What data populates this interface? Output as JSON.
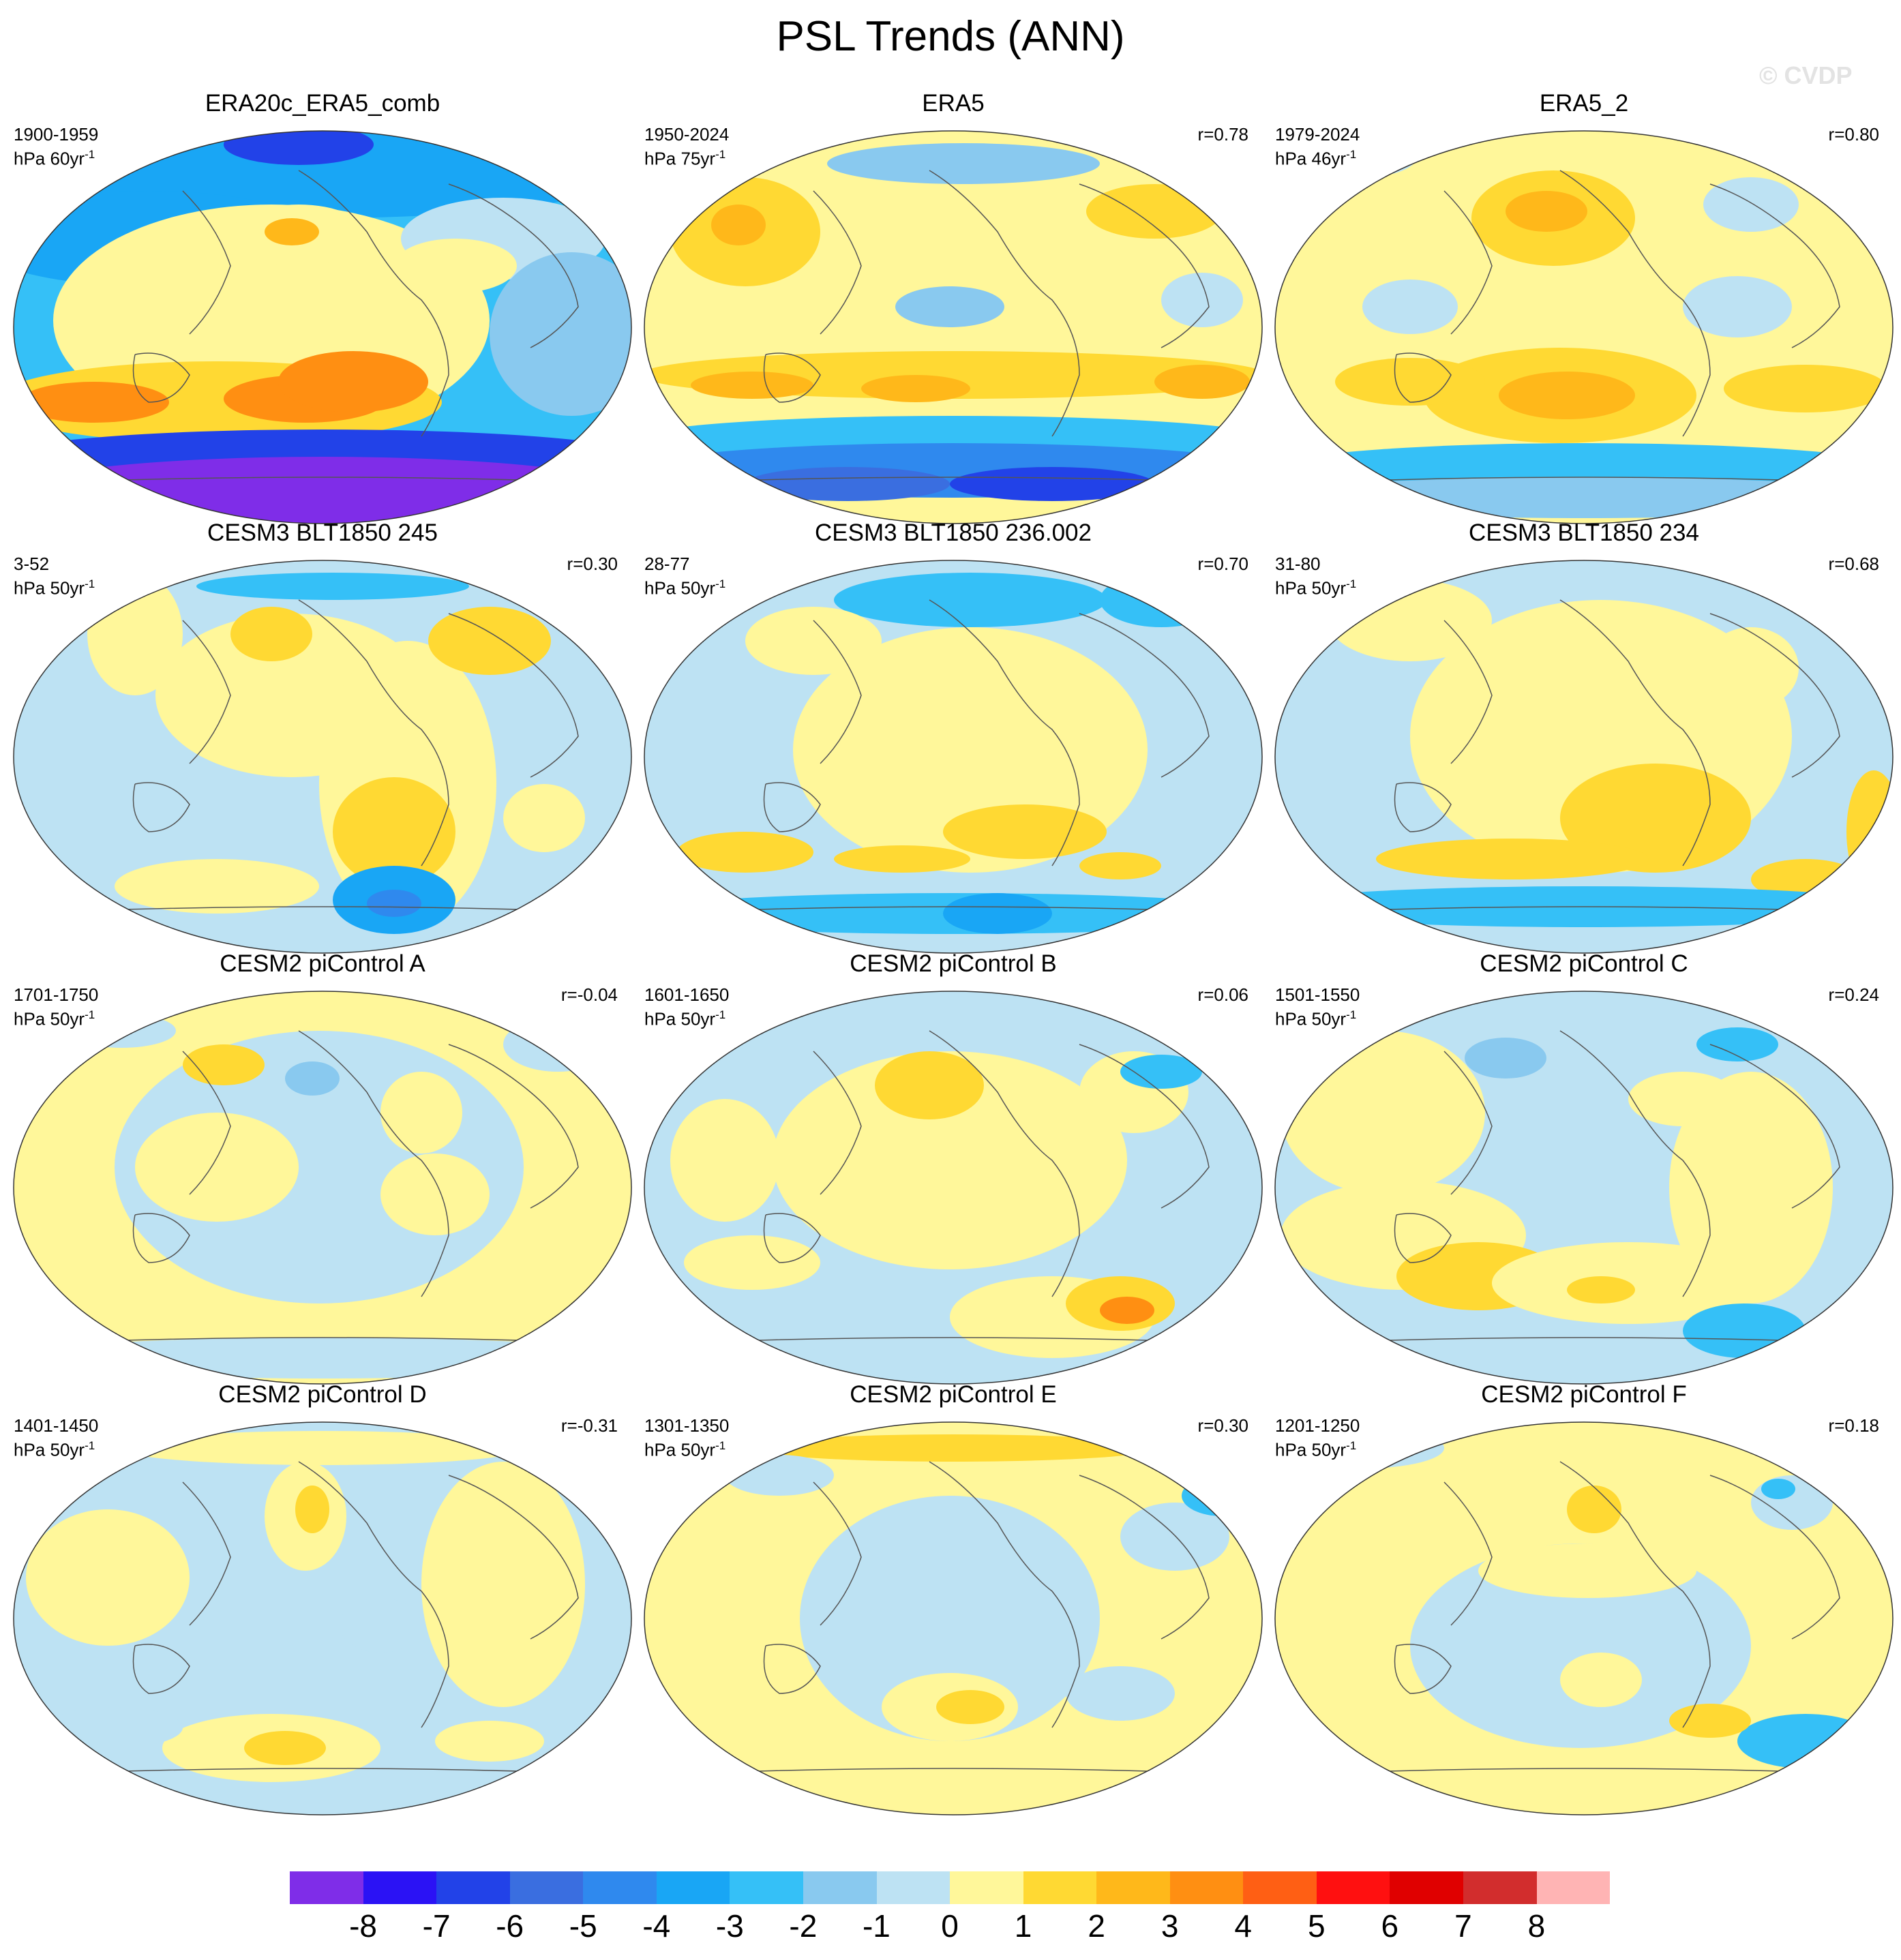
{
  "title": "PSL Trends (ANN)",
  "watermark": "© CVDP",
  "panels": [
    {
      "title": "ERA20c_ERA5_comb",
      "period": "1900-1959",
      "units": "hPa 60yr",
      "units_sup": "-1",
      "r": "",
      "pattern": "era20c"
    },
    {
      "title": "ERA5",
      "period": "1950-2024",
      "units": "hPa 75yr",
      "units_sup": "-1",
      "r": "r=0.78",
      "pattern": "era5"
    },
    {
      "title": "ERA5_2",
      "period": "1979-2024",
      "units": "hPa 46yr",
      "units_sup": "-1",
      "r": "r=0.80",
      "pattern": "era5_2"
    },
    {
      "title": "CESM3 BLT1850 245",
      "period": "3-52",
      "units": "hPa 50yr",
      "units_sup": "-1",
      "r": "r=0.30",
      "pattern": "cesm3a"
    },
    {
      "title": "CESM3 BLT1850 236.002",
      "period": "28-77",
      "units": "hPa 50yr",
      "units_sup": "-1",
      "r": "r=0.70",
      "pattern": "cesm3b"
    },
    {
      "title": "CESM3 BLT1850 234",
      "period": "31-80",
      "units": "hPa 50yr",
      "units_sup": "-1",
      "r": "r=0.68",
      "pattern": "cesm3c"
    },
    {
      "title": "CESM2 piControl A",
      "period": "1701-1750",
      "units": "hPa 50yr",
      "units_sup": "-1",
      "r": "r=-0.04",
      "pattern": "picA"
    },
    {
      "title": "CESM2 piControl B",
      "period": "1601-1650",
      "units": "hPa 50yr",
      "units_sup": "-1",
      "r": "r=0.06",
      "pattern": "picB"
    },
    {
      "title": "CESM2 piControl C",
      "period": "1501-1550",
      "units": "hPa 50yr",
      "units_sup": "-1",
      "r": "r=0.24",
      "pattern": "picC"
    },
    {
      "title": "CESM2 piControl D",
      "period": "1401-1450",
      "units": "hPa 50yr",
      "units_sup": "-1",
      "r": "r=-0.31",
      "pattern": "picD"
    },
    {
      "title": "CESM2 piControl E",
      "period": "1301-1350",
      "units": "hPa 50yr",
      "units_sup": "-1",
      "r": "r=0.30",
      "pattern": "picE"
    },
    {
      "title": "CESM2 piControl F",
      "period": "1201-1250",
      "units": "hPa 50yr",
      "units_sup": "-1",
      "r": "r=0.18",
      "pattern": "picF"
    }
  ],
  "colorbar": {
    "colors": [
      "#7f2de8",
      "#2b12f5",
      "#2242e8",
      "#3a6ee0",
      "#2f89ee",
      "#19a6f5",
      "#35c0f7",
      "#89c9ef",
      "#bde2f3",
      "#fff79a",
      "#ffd933",
      "#ffb81a",
      "#ff8f12",
      "#ff5f14",
      "#ff1010",
      "#e00000",
      "#d22d2d",
      "#ffb4b4"
    ],
    "labels": [
      "-8",
      "-7",
      "-6",
      "-5",
      "-4",
      "-3",
      "-2",
      "-1",
      "0",
      "1",
      "2",
      "3",
      "4",
      "5",
      "6",
      "7",
      "8"
    ]
  }
}
